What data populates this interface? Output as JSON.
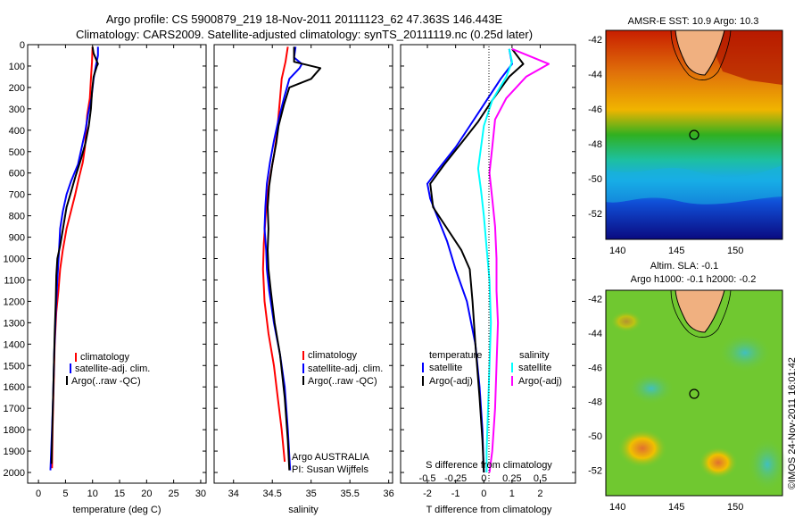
{
  "header": {
    "line1": "Argo profile: CS 5900879_219 18-Nov-2011 20111123_62 47.363S 146.443E",
    "line2": "Climatology: CARS2009. Satellite-adjusted climatology: synTS_20111119.nc (0.25d later)"
  },
  "colors": {
    "climatology": "#ff0000",
    "satellite": "#0000ff",
    "argo": "#000000",
    "sat_cyan": "#00ffff",
    "argo_magenta": "#ff00ff"
  },
  "chart_data": [
    {
      "type": "line",
      "panel": "temperature",
      "xlabel": "temperature (deg C)",
      "ylabel": "",
      "xlim": [
        -2,
        31
      ],
      "ylim": [
        2050,
        0
      ],
      "xticks": [
        0,
        5,
        10,
        15,
        20,
        25,
        30
      ],
      "yticks": [
        0,
        100,
        200,
        300,
        400,
        500,
        600,
        700,
        800,
        900,
        1000,
        1100,
        1200,
        1300,
        1400,
        1500,
        1600,
        1700,
        1800,
        1900,
        2000
      ],
      "legend": {
        "position": "lower-right",
        "entries": [
          "climatology",
          "satellite-adj. clim.",
          "Argo(..raw -QC)"
        ]
      },
      "series": [
        {
          "name": "climatology",
          "color": "#ff0000",
          "points": [
            [
              10.0,
              10
            ],
            [
              9.9,
              80
            ],
            [
              9.7,
              160
            ],
            [
              9.5,
              250
            ],
            [
              9.0,
              330
            ],
            [
              8.8,
              400
            ],
            [
              8.6,
              480
            ],
            [
              8.2,
              550
            ],
            [
              7.5,
              620
            ],
            [
              6.8,
              700
            ],
            [
              6.0,
              780
            ],
            [
              5.2,
              860
            ],
            [
              4.5,
              960
            ],
            [
              4.0,
              1050
            ],
            [
              3.7,
              1150
            ],
            [
              3.3,
              1250
            ],
            [
              3.0,
              1400
            ],
            [
              2.8,
              1600
            ],
            [
              2.6,
              1800
            ],
            [
              2.5,
              1980
            ]
          ]
        },
        {
          "name": "satellite-adj. clim.",
          "color": "#0000ff",
          "points": [
            [
              11.0,
              10
            ],
            [
              11.0,
              50
            ],
            [
              10.6,
              100
            ],
            [
              10.2,
              160
            ],
            [
              9.8,
              250
            ],
            [
              9.2,
              320
            ],
            [
              8.7,
              400
            ],
            [
              8.0,
              480
            ],
            [
              7.3,
              560
            ],
            [
              6.0,
              640
            ],
            [
              5.2,
              700
            ],
            [
              4.5,
              780
            ],
            [
              4.0,
              860
            ],
            [
              3.8,
              960
            ],
            [
              3.5,
              1100
            ],
            [
              3.2,
              1250
            ],
            [
              2.9,
              1450
            ],
            [
              2.7,
              1650
            ],
            [
              2.5,
              1800
            ],
            [
              2.2,
              1990
            ]
          ]
        },
        {
          "name": "Argo(..raw -QC)",
          "color": "#000000",
          "points": [
            [
              10.0,
              10
            ],
            [
              10.2,
              40
            ],
            [
              11.0,
              90
            ],
            [
              10.8,
              100
            ],
            [
              10.2,
              150
            ],
            [
              9.9,
              220
            ],
            [
              9.7,
              300
            ],
            [
              9.3,
              380
            ],
            [
              8.7,
              460
            ],
            [
              7.8,
              540
            ],
            [
              6.8,
              620
            ],
            [
              6.0,
              690
            ],
            [
              5.2,
              760
            ],
            [
              4.6,
              850
            ],
            [
              4.0,
              940
            ],
            [
              3.5,
              1000
            ],
            [
              3.3,
              1080
            ],
            [
              3.2,
              1200
            ],
            [
              3.0,
              1350
            ],
            [
              2.8,
              1550
            ],
            [
              2.6,
              1750
            ],
            [
              2.4,
              1960
            ]
          ]
        }
      ]
    },
    {
      "type": "line",
      "panel": "salinity",
      "xlabel": "salinity",
      "xlim": [
        33.75,
        36.05
      ],
      "ylim": [
        2050,
        0
      ],
      "xticks": [
        34,
        34.5,
        35,
        35.5,
        36
      ],
      "legend": {
        "position": "lower-right",
        "entries": [
          "climatology",
          "satellite-adj. clim.",
          "Argo(..raw -QC)"
        ]
      },
      "annotations": [
        "Argo AUSTRALIA",
        "PI: Susan Wijffels"
      ],
      "series": [
        {
          "name": "climatology",
          "color": "#ff0000",
          "points": [
            [
              34.7,
              10
            ],
            [
              34.67,
              80
            ],
            [
              34.62,
              160
            ],
            [
              34.6,
              250
            ],
            [
              34.58,
              330
            ],
            [
              34.56,
              420
            ],
            [
              34.52,
              520
            ],
            [
              34.47,
              620
            ],
            [
              34.43,
              720
            ],
            [
              34.41,
              820
            ],
            [
              34.39,
              930
            ],
            [
              34.38,
              1050
            ],
            [
              34.4,
              1200
            ],
            [
              34.45,
              1350
            ],
            [
              34.52,
              1500
            ],
            [
              34.57,
              1650
            ],
            [
              34.62,
              1800
            ],
            [
              34.66,
              1950
            ]
          ]
        },
        {
          "name": "satellite-adj. clim.",
          "color": "#0000ff",
          "points": [
            [
              34.8,
              10
            ],
            [
              34.78,
              60
            ],
            [
              34.88,
              90
            ],
            [
              34.85,
              110
            ],
            [
              34.72,
              160
            ],
            [
              34.65,
              250
            ],
            [
              34.58,
              350
            ],
            [
              34.52,
              450
            ],
            [
              34.47,
              550
            ],
            [
              34.43,
              650
            ],
            [
              34.41,
              760
            ],
            [
              34.4,
              860
            ],
            [
              34.42,
              960
            ],
            [
              34.43,
              1050
            ],
            [
              34.46,
              1150
            ],
            [
              34.52,
              1300
            ],
            [
              34.6,
              1450
            ],
            [
              34.66,
              1600
            ],
            [
              34.7,
              1800
            ],
            [
              34.73,
              1990
            ]
          ]
        },
        {
          "name": "Argo(..raw -QC)",
          "color": "#000000",
          "points": [
            [
              34.78,
              10
            ],
            [
              34.78,
              80
            ],
            [
              35.12,
              110
            ],
            [
              35.0,
              160
            ],
            [
              34.72,
              200
            ],
            [
              34.65,
              280
            ],
            [
              34.58,
              380
            ],
            [
              34.55,
              460
            ],
            [
              34.5,
              560
            ],
            [
              34.46,
              660
            ],
            [
              34.44,
              760
            ],
            [
              34.45,
              860
            ],
            [
              34.44,
              960
            ],
            [
              34.45,
              1050
            ],
            [
              34.48,
              1150
            ],
            [
              34.53,
              1300
            ],
            [
              34.6,
              1450
            ],
            [
              34.66,
              1650
            ],
            [
              34.7,
              1850
            ],
            [
              34.72,
              1990
            ]
          ]
        }
      ]
    },
    {
      "type": "line",
      "panel": "difference",
      "xlabel": "T difference from climatology",
      "xlabel2": "S difference from climatology",
      "xlim": [
        -2.95,
        3.25
      ],
      "ylim": [
        2050,
        0
      ],
      "xticks": [
        -2,
        -1,
        0,
        1,
        2
      ],
      "xticks_s": [
        "-0.5",
        "-0.25",
        "0",
        "0.25",
        "0.5"
      ],
      "legend_temperature": {
        "title": "temperature",
        "entries": [
          "satellite",
          "Argo(-adj)"
        ]
      },
      "legend_salinity": {
        "title": "salinity",
        "entries": [
          "satellite",
          "Argo(-adj)"
        ]
      },
      "series": [
        {
          "name": "satellite",
          "group": "temperature",
          "color": "#0000ff",
          "points": [
            [
              0.9,
              20
            ],
            [
              1.0,
              90
            ],
            [
              0.6,
              160
            ],
            [
              0.0,
              280
            ],
            [
              -0.5,
              380
            ],
            [
              -1.0,
              480
            ],
            [
              -1.6,
              580
            ],
            [
              -2.0,
              650
            ],
            [
              -1.9,
              720
            ],
            [
              -1.6,
              820
            ],
            [
              -1.3,
              920
            ],
            [
              -1.0,
              1050
            ],
            [
              -0.6,
              1200
            ],
            [
              -0.3,
              1400
            ],
            [
              -0.15,
              1600
            ],
            [
              -0.05,
              1800
            ],
            [
              0.0,
              2000
            ]
          ]
        },
        {
          "name": "Argo(-adj)",
          "group": "temperature",
          "color": "#000000",
          "points": [
            [
              1.0,
              20
            ],
            [
              1.4,
              90
            ],
            [
              0.9,
              150
            ],
            [
              0.3,
              260
            ],
            [
              -0.2,
              360
            ],
            [
              -0.8,
              460
            ],
            [
              -1.4,
              560
            ],
            [
              -1.9,
              650
            ],
            [
              -1.8,
              760
            ],
            [
              -1.3,
              860
            ],
            [
              -0.8,
              960
            ],
            [
              -0.5,
              1050
            ],
            [
              -0.4,
              1200
            ],
            [
              -0.3,
              1400
            ],
            [
              -0.15,
              1650
            ],
            [
              -0.05,
              1850
            ],
            [
              0.0,
              2000
            ]
          ]
        },
        {
          "name": "satellite",
          "group": "salinity",
          "color": "#00ffff",
          "points": [
            [
              0.9,
              20
            ],
            [
              1.0,
              80
            ],
            [
              0.8,
              150
            ],
            [
              0.3,
              260
            ],
            [
              0.0,
              380
            ],
            [
              -0.1,
              480
            ],
            [
              -0.2,
              580
            ],
            [
              -0.1,
              680
            ],
            [
              0.0,
              800
            ],
            [
              0.1,
              950
            ],
            [
              0.2,
              1100
            ],
            [
              0.25,
              1300
            ],
            [
              0.2,
              1500
            ],
            [
              0.15,
              1700
            ],
            [
              0.1,
              1900
            ],
            [
              0.1,
              2000
            ]
          ]
        },
        {
          "name": "Argo(-adj)",
          "group": "salinity",
          "color": "#ff00ff",
          "points": [
            [
              1.0,
              20
            ],
            [
              2.3,
              90
            ],
            [
              1.5,
              150
            ],
            [
              0.8,
              250
            ],
            [
              0.4,
              350
            ],
            [
              0.3,
              480
            ],
            [
              0.2,
              600
            ],
            [
              0.3,
              720
            ],
            [
              0.4,
              850
            ],
            [
              0.45,
              1000
            ],
            [
              0.45,
              1150
            ],
            [
              0.5,
              1300
            ],
            [
              0.45,
              1500
            ],
            [
              0.4,
              1700
            ],
            [
              0.3,
              1900
            ],
            [
              0.2,
              2000
            ]
          ]
        }
      ]
    },
    {
      "type": "heatmap",
      "panel": "map-sst",
      "title": "AMSR-E SST: 10.9  Argo: 10.3",
      "xlim": [
        139,
        154
      ],
      "ylim": [
        -53.5,
        -41.5
      ],
      "xticks": [
        140,
        145,
        150
      ],
      "yticks": [
        -42,
        -44,
        -46,
        -48,
        -50,
        -52
      ],
      "float_position": {
        "lon": 146.443,
        "lat": -47.363
      }
    },
    {
      "type": "heatmap",
      "panel": "map-sla",
      "title": "Altim. SLA: -0.1",
      "subtitle": "Argo h1000: -0.1 h2000: -0.2",
      "xlim": [
        139,
        154
      ],
      "ylim": [
        -53.5,
        -41.5
      ],
      "xticks": [
        140,
        145,
        150
      ],
      "yticks": [
        -42,
        -44,
        -46,
        -48,
        -50,
        -52
      ],
      "float_position": {
        "lon": 146.443,
        "lat": -47.363
      }
    }
  ],
  "footer": {
    "credit": "©IMOS 24-Nov-2011 16:01:42"
  }
}
